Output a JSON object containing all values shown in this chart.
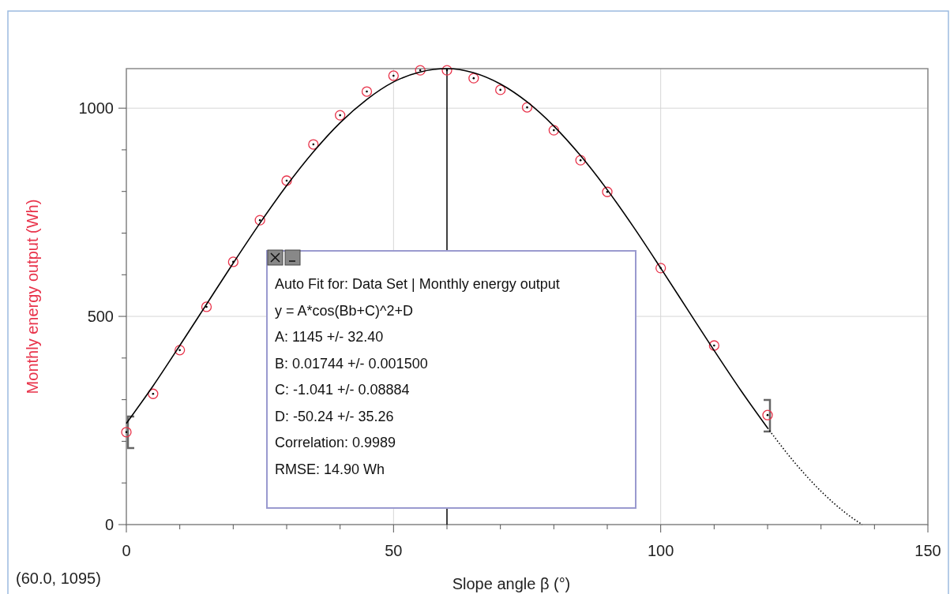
{
  "chart_data": {
    "type": "scatter",
    "xlabel": "Slope angle β (°)",
    "ylabel": "Monthly energy output (Wh)",
    "xlim": [
      0,
      150
    ],
    "ylim": [
      0,
      1095
    ],
    "xticks": [
      0,
      {
        "value": 10,
        "label": null
      },
      {
        "value": 20,
        "label": null
      },
      {
        "value": 30,
        "label": null
      },
      {
        "value": 40,
        "label": null
      },
      50,
      {
        "value": 60,
        "label": null
      },
      {
        "value": 70,
        "label": null
      },
      {
        "value": 80,
        "label": null
      },
      {
        "value": 90,
        "label": null
      },
      100,
      {
        "value": 110,
        "label": null
      },
      {
        "value": 120,
        "label": null
      },
      {
        "value": 130,
        "label": null
      },
      {
        "value": 140,
        "label": null
      },
      150
    ],
    "yticks": [
      0,
      {
        "value": 100,
        "label": null
      },
      {
        "value": 200,
        "label": null
      },
      {
        "value": 300,
        "label": null
      },
      {
        "value": 400,
        "label": null
      },
      500,
      {
        "value": 600,
        "label": null
      },
      {
        "value": 700,
        "label": null
      },
      {
        "value": 800,
        "label": null
      },
      {
        "value": 900,
        "label": null
      },
      1000
    ],
    "grid": true,
    "series": [
      {
        "marker": "circle",
        "color": "#e8334a",
        "x": [
          0,
          5,
          10,
          15,
          20,
          25,
          30,
          35,
          40,
          45,
          50,
          55,
          60,
          65,
          70,
          75,
          80,
          85,
          90,
          100,
          110,
          120
        ],
        "values": [
          222,
          314,
          419,
          523,
          631,
          731,
          826,
          913,
          983,
          1040,
          1078,
          1091,
          1091,
          1072,
          1044,
          1002,
          947,
          875,
          799,
          616,
          430,
          263
        ]
      },
      {
        "type": "line",
        "color": "#000000",
        "line_style": "solid",
        "x": [
          0,
          5,
          10,
          15,
          20,
          25,
          30,
          35,
          40,
          45,
          50,
          55,
          60,
          65,
          70,
          75,
          80,
          85,
          90,
          95,
          100,
          105,
          110,
          115,
          120
        ],
        "values": [
          243,
          333,
          430,
          529,
          628,
          724,
          814,
          895,
          965,
          1021,
          1063,
          1087,
          1095,
          1085,
          1058,
          1015,
          957,
          886,
          804,
          713,
          616,
          517,
          418,
          322,
          232
        ]
      },
      {
        "type": "line",
        "color": "#000000",
        "line_style": "dotted",
        "x": [
          120,
          125,
          130,
          135,
          137.7
        ],
        "values": [
          232,
          150,
          80,
          24,
          0
        ]
      }
    ],
    "ref_lines": [
      {
        "axis": "x",
        "value": 60,
        "color": "#000000"
      }
    ],
    "annotations": [
      "Auto Fit for: Data Set | Monthly energy output",
      "y = A*cos(Bb+C)^2+D",
      "A: 1145 +/- 32.40",
      "B: 0.01744 +/- 0.001500",
      "C: -1.041 +/- 0.08884",
      "D: -50.24 +/- 35.26",
      "Correlation: 0.9989",
      "RMSE: 14.90 Wh",
      "(60.0, 1095)"
    ]
  }
}
